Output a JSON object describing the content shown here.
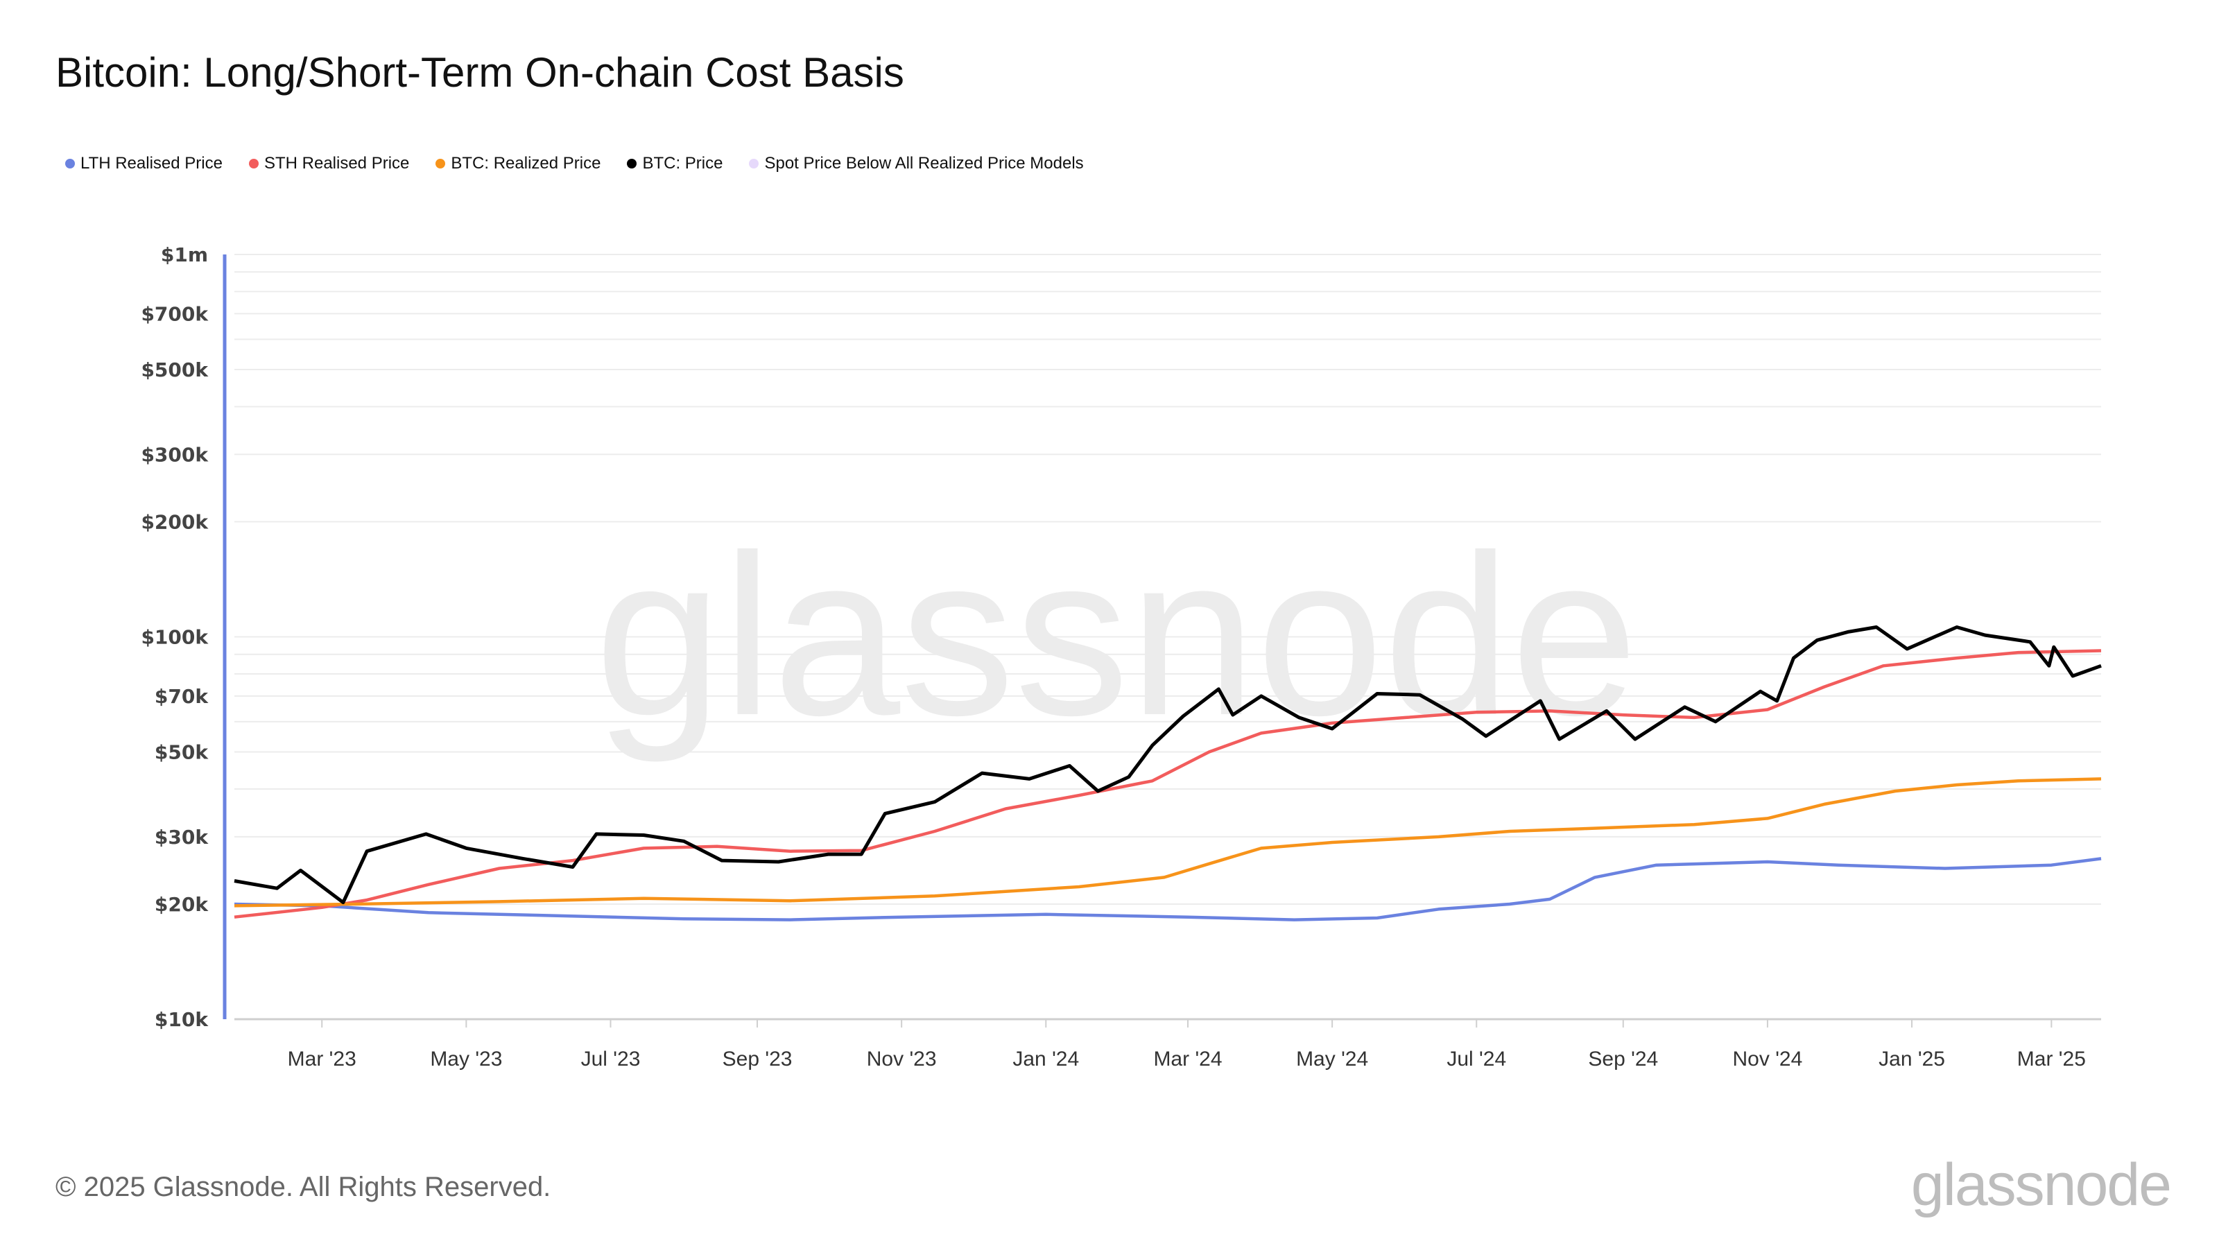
{
  "chart_data": {
    "type": "line",
    "title": "Bitcoin: Long/Short-Term On-chain Cost Basis",
    "y_scale": "log",
    "ylim": [
      10000,
      1000000
    ],
    "xlim": [
      "2023-01-23",
      "2025-03-22"
    ],
    "grid": true,
    "legend_position": "top-left",
    "y_ticks": [
      {
        "value": 1000000,
        "label": "$1m"
      },
      {
        "value": 700000,
        "label": "$700k"
      },
      {
        "value": 500000,
        "label": "$500k"
      },
      {
        "value": 300000,
        "label": "$300k"
      },
      {
        "value": 200000,
        "label": "$200k"
      },
      {
        "value": 100000,
        "label": "$100k"
      },
      {
        "value": 70000,
        "label": "$70k"
      },
      {
        "value": 50000,
        "label": "$50k"
      },
      {
        "value": 30000,
        "label": "$30k"
      },
      {
        "value": 20000,
        "label": "$20k"
      },
      {
        "value": 10000,
        "label": "$10k"
      }
    ],
    "x_ticks": [
      {
        "date": "2023-03-01",
        "label": "Mar '23"
      },
      {
        "date": "2023-05-01",
        "label": "May '23"
      },
      {
        "date": "2023-07-01",
        "label": "Jul '23"
      },
      {
        "date": "2023-09-01",
        "label": "Sep '23"
      },
      {
        "date": "2023-11-01",
        "label": "Nov '23"
      },
      {
        "date": "2024-01-01",
        "label": "Jan '24"
      },
      {
        "date": "2024-03-01",
        "label": "Mar '24"
      },
      {
        "date": "2024-05-01",
        "label": "May '24"
      },
      {
        "date": "2024-07-01",
        "label": "Jul '24"
      },
      {
        "date": "2024-09-01",
        "label": "Sep '24"
      },
      {
        "date": "2024-11-01",
        "label": "Nov '24"
      },
      {
        "date": "2025-01-01",
        "label": "Jan '25"
      },
      {
        "date": "2025-03-01",
        "label": "Mar '25"
      }
    ],
    "series": [
      {
        "name": "LTH Realised Price",
        "color": "#6a82e0",
        "points": [
          [
            "2023-01-23",
            20000
          ],
          [
            "2023-03-01",
            19800
          ],
          [
            "2023-04-15",
            19000
          ],
          [
            "2023-06-01",
            18700
          ],
          [
            "2023-08-01",
            18300
          ],
          [
            "2023-09-15",
            18200
          ],
          [
            "2023-11-01",
            18500
          ],
          [
            "2024-01-01",
            18800
          ],
          [
            "2024-03-01",
            18500
          ],
          [
            "2024-04-15",
            18200
          ],
          [
            "2024-05-20",
            18400
          ],
          [
            "2024-06-15",
            19400
          ],
          [
            "2024-07-15",
            20000
          ],
          [
            "2024-08-01",
            20600
          ],
          [
            "2024-08-20",
            23500
          ],
          [
            "2024-09-15",
            25300
          ],
          [
            "2024-11-01",
            25800
          ],
          [
            "2024-12-01",
            25300
          ],
          [
            "2025-01-15",
            24800
          ],
          [
            "2025-03-01",
            25300
          ],
          [
            "2025-03-22",
            26300
          ]
        ]
      },
      {
        "name": "STH Realised Price",
        "color": "#f25c5c",
        "points": [
          [
            "2023-01-23",
            18500
          ],
          [
            "2023-03-01",
            19600
          ],
          [
            "2023-03-20",
            20500
          ],
          [
            "2023-04-15",
            22500
          ],
          [
            "2023-05-15",
            24800
          ],
          [
            "2023-06-15",
            26000
          ],
          [
            "2023-07-15",
            28000
          ],
          [
            "2023-08-15",
            28300
          ],
          [
            "2023-09-15",
            27500
          ],
          [
            "2023-10-15",
            27600
          ],
          [
            "2023-11-15",
            31000
          ],
          [
            "2023-12-15",
            35500
          ],
          [
            "2024-01-15",
            38500
          ],
          [
            "2024-02-15",
            42000
          ],
          [
            "2024-03-10",
            50000
          ],
          [
            "2024-04-01",
            56000
          ],
          [
            "2024-05-01",
            59500
          ],
          [
            "2024-06-01",
            61500
          ],
          [
            "2024-07-01",
            63500
          ],
          [
            "2024-08-01",
            64000
          ],
          [
            "2024-09-01",
            62500
          ],
          [
            "2024-10-01",
            61500
          ],
          [
            "2024-11-01",
            64500
          ],
          [
            "2024-11-25",
            74000
          ],
          [
            "2024-12-20",
            84000
          ],
          [
            "2025-01-20",
            88000
          ],
          [
            "2025-02-15",
            91000
          ],
          [
            "2025-03-22",
            92000
          ]
        ]
      },
      {
        "name": "BTC: Realized Price",
        "color": "#f7931a",
        "points": [
          [
            "2023-01-23",
            19800
          ],
          [
            "2023-03-15",
            20000
          ],
          [
            "2023-05-15",
            20300
          ],
          [
            "2023-07-15",
            20700
          ],
          [
            "2023-09-15",
            20400
          ],
          [
            "2023-11-15",
            21000
          ],
          [
            "2024-01-15",
            22200
          ],
          [
            "2024-02-20",
            23500
          ],
          [
            "2024-03-10",
            25500
          ],
          [
            "2024-04-01",
            28000
          ],
          [
            "2024-05-01",
            29000
          ],
          [
            "2024-06-15",
            30000
          ],
          [
            "2024-07-15",
            31000
          ],
          [
            "2024-08-15",
            31500
          ],
          [
            "2024-10-01",
            32300
          ],
          [
            "2024-11-01",
            33500
          ],
          [
            "2024-11-25",
            36500
          ],
          [
            "2024-12-25",
            39500
          ],
          [
            "2025-01-20",
            41000
          ],
          [
            "2025-02-15",
            42000
          ],
          [
            "2025-03-22",
            42500
          ]
        ]
      },
      {
        "name": "BTC: Price",
        "color": "#000000",
        "points": [
          [
            "2023-01-23",
            23000
          ],
          [
            "2023-02-10",
            22000
          ],
          [
            "2023-02-20",
            24500
          ],
          [
            "2023-03-10",
            20200
          ],
          [
            "2023-03-20",
            27500
          ],
          [
            "2023-04-14",
            30500
          ],
          [
            "2023-05-01",
            28000
          ],
          [
            "2023-05-25",
            26300
          ],
          [
            "2023-06-15",
            25000
          ],
          [
            "2023-06-25",
            30500
          ],
          [
            "2023-07-15",
            30300
          ],
          [
            "2023-08-01",
            29200
          ],
          [
            "2023-08-17",
            26000
          ],
          [
            "2023-09-10",
            25800
          ],
          [
            "2023-10-01",
            27000
          ],
          [
            "2023-10-15",
            27000
          ],
          [
            "2023-10-25",
            34500
          ],
          [
            "2023-11-15",
            37000
          ],
          [
            "2023-12-05",
            44000
          ],
          [
            "2023-12-25",
            42500
          ],
          [
            "2024-01-11",
            46000
          ],
          [
            "2024-01-23",
            39500
          ],
          [
            "2024-02-05",
            43000
          ],
          [
            "2024-02-15",
            52000
          ],
          [
            "2024-02-28",
            62000
          ],
          [
            "2024-03-14",
            73000
          ],
          [
            "2024-03-20",
            62500
          ],
          [
            "2024-04-01",
            70000
          ],
          [
            "2024-04-17",
            61500
          ],
          [
            "2024-05-01",
            57500
          ],
          [
            "2024-05-20",
            71000
          ],
          [
            "2024-06-07",
            70500
          ],
          [
            "2024-06-25",
            61000
          ],
          [
            "2024-07-05",
            55000
          ],
          [
            "2024-07-28",
            68000
          ],
          [
            "2024-08-05",
            54000
          ],
          [
            "2024-08-25",
            64000
          ],
          [
            "2024-09-06",
            54000
          ],
          [
            "2024-09-27",
            65500
          ],
          [
            "2024-10-10",
            60000
          ],
          [
            "2024-10-29",
            72000
          ],
          [
            "2024-11-05",
            68000
          ],
          [
            "2024-11-12",
            88000
          ],
          [
            "2024-11-22",
            98000
          ],
          [
            "2024-12-05",
            103000
          ],
          [
            "2024-12-17",
            106000
          ],
          [
            "2024-12-30",
            93000
          ],
          [
            "2025-01-20",
            106000
          ],
          [
            "2025-02-01",
            101000
          ],
          [
            "2025-02-20",
            97000
          ],
          [
            "2025-02-28",
            84000
          ],
          [
            "2025-03-02",
            94000
          ],
          [
            "2025-03-10",
            79000
          ],
          [
            "2025-03-22",
            84000
          ]
        ]
      },
      {
        "name": "Spot Price Below All Realized Price Models",
        "color": "#e6d9fb",
        "points": []
      }
    ],
    "watermark": "glassnode"
  },
  "footer": {
    "copyright": "© 2025 Glassnode. All Rights Reserved.",
    "logo": "glassnode"
  }
}
